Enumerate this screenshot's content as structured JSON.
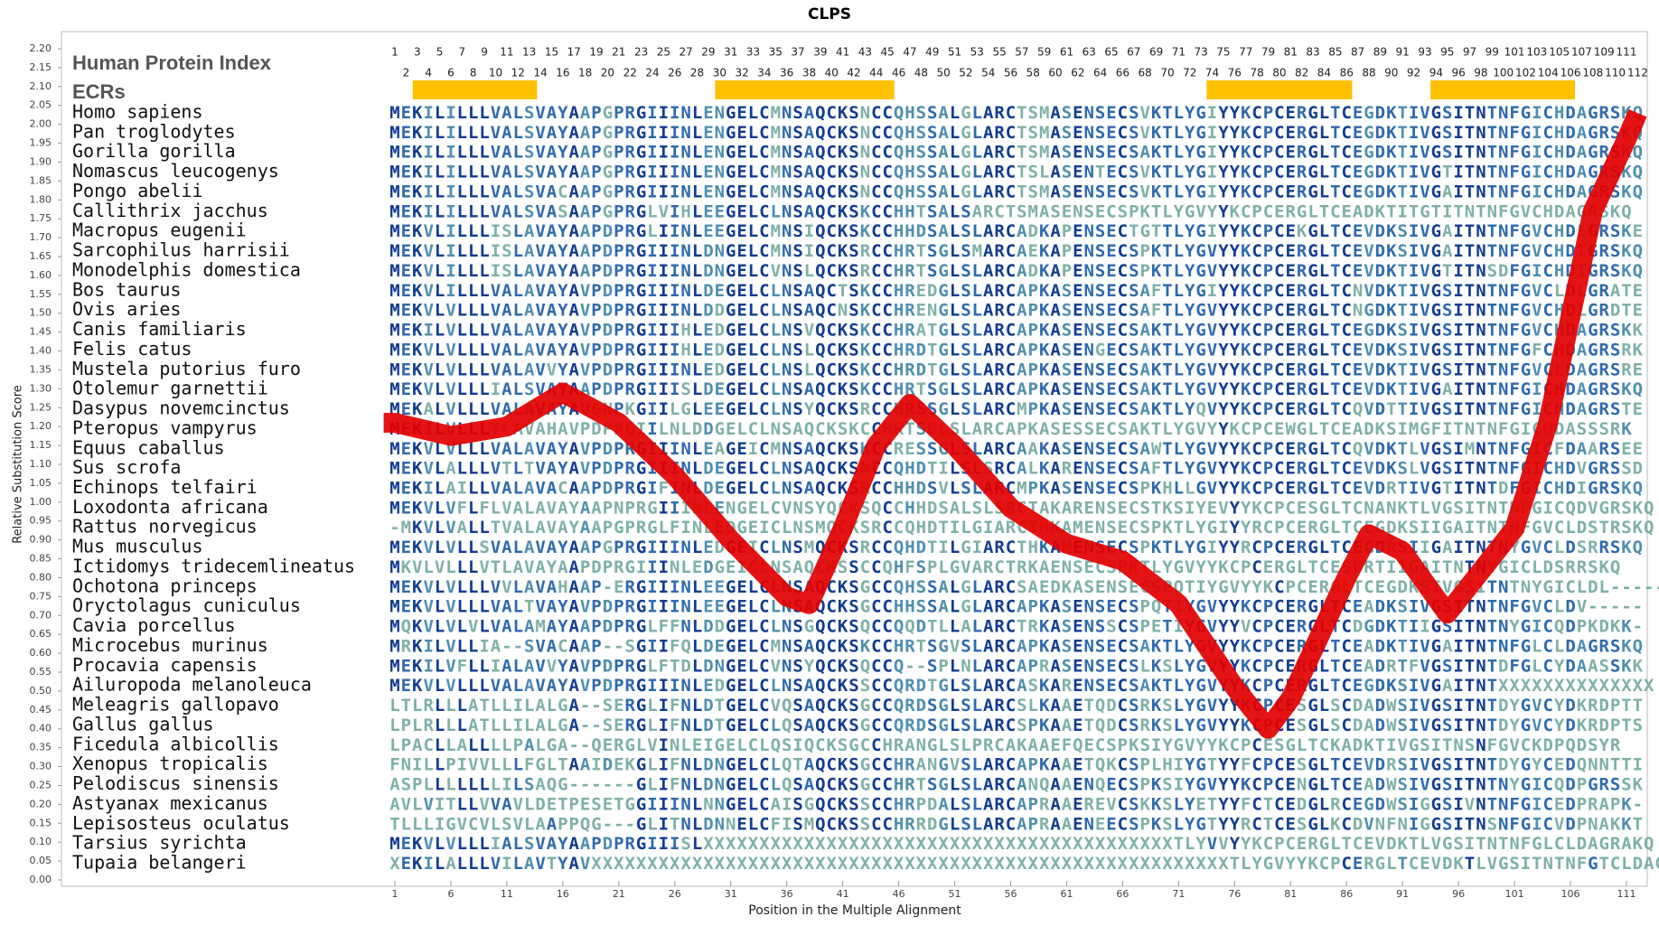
{
  "chart_data": {
    "type": "line",
    "title": "CLPS",
    "y_label": "Relative Substitution Score",
    "x_label": "Position in the Multiple Alignment",
    "color": "#e30000",
    "x": [
      0,
      1,
      6,
      11,
      16,
      21,
      26,
      31,
      36,
      38,
      41,
      44,
      47,
      51,
      56,
      61,
      66,
      71,
      76,
      79,
      81,
      86,
      88,
      91,
      95,
      101,
      104,
      106,
      108,
      111,
      112
    ],
    "values": [
      1.21,
      1.21,
      1.175,
      1.2,
      1.29,
      1.21,
      1.07,
      0.9,
      0.75,
      0.73,
      0.93,
      1.15,
      1.26,
      1.15,
      0.985,
      0.89,
      0.845,
      0.73,
      0.51,
      0.4,
      0.48,
      0.8,
      0.915,
      0.87,
      0.705,
      0.93,
      1.21,
      1.49,
      1.77,
      1.96,
      2.03
    ],
    "xlim": [
      1,
      111
    ],
    "ylim": [
      0,
      2.2
    ],
    "xticks": [
      1,
      6,
      11,
      16,
      21,
      26,
      31,
      36,
      41,
      46,
      51,
      56,
      61,
      66,
      71,
      76,
      81,
      86,
      91,
      96,
      101,
      106,
      111
    ],
    "yticks": [
      {
        "value": 0,
        "label": "0.00"
      },
      {
        "value": 0.05,
        "label": "0.05"
      },
      {
        "value": 0.1,
        "label": "0.10"
      },
      {
        "value": 0.15,
        "label": "0.15"
      },
      {
        "value": 0.2,
        "label": "0.20"
      },
      {
        "value": 0.25,
        "label": "0.25"
      },
      {
        "value": 0.3,
        "label": "0.30"
      },
      {
        "value": 0.35,
        "label": "0.35"
      },
      {
        "value": 0.4,
        "label": "0.40"
      },
      {
        "value": 0.45,
        "label": "0.45"
      },
      {
        "value": 0.5,
        "label": "0.50"
      },
      {
        "value": 0.55,
        "label": "0.55"
      },
      {
        "value": 0.6,
        "label": "0.60"
      },
      {
        "value": 0.65,
        "label": "0.65"
      },
      {
        "value": 0.7,
        "label": "0.70"
      },
      {
        "value": 0.75,
        "label": "0.75"
      },
      {
        "value": 0.8,
        "label": "0.80"
      },
      {
        "value": 0.85,
        "label": "0.85"
      },
      {
        "value": 0.9,
        "label": "0.90"
      },
      {
        "value": 0.95,
        "label": "0.95"
      },
      {
        "value": 1,
        "label": "1.00"
      },
      {
        "value": 1.05,
        "label": "1.05"
      },
      {
        "value": 1.1,
        "label": "1.10"
      },
      {
        "value": 1.15,
        "label": "1.15"
      },
      {
        "value": 1.2,
        "label": "1.20"
      },
      {
        "value": 1.25,
        "label": "1.25"
      },
      {
        "value": 1.3,
        "label": "1.30"
      },
      {
        "value": 1.35,
        "label": "1.35"
      },
      {
        "value": 1.4,
        "label": "1.40"
      },
      {
        "value": 1.45,
        "label": "1.45"
      },
      {
        "value": 1.5,
        "label": "1.50"
      },
      {
        "value": 1.55,
        "label": "1.55"
      },
      {
        "value": 1.6,
        "label": "1.60"
      },
      {
        "value": 1.65,
        "label": "1.65"
      },
      {
        "value": 1.7,
        "label": "1.70"
      },
      {
        "value": 1.75,
        "label": "1.75"
      },
      {
        "value": 1.8,
        "label": "1.80"
      },
      {
        "value": 1.85,
        "label": "1.85"
      },
      {
        "value": 1.9,
        "label": "1.90"
      },
      {
        "value": 1.95,
        "label": "1.95"
      },
      {
        "value": 2,
        "label": "2.00"
      },
      {
        "value": 2.05,
        "label": "2.05"
      },
      {
        "value": 2.1,
        "label": "2.10"
      },
      {
        "value": 2.15,
        "label": "2.15"
      },
      {
        "value": 2.2,
        "label": "2.20"
      }
    ],
    "index_label": "Human Protein Index",
    "index": [
      1,
      2,
      3,
      4,
      5,
      6,
      7,
      8,
      9,
      10,
      11,
      12,
      13,
      14,
      15,
      16,
      17,
      18,
      19,
      20,
      21,
      22,
      23,
      24,
      25,
      26,
      27,
      28,
      29,
      30,
      31,
      32,
      33,
      34,
      35,
      36,
      37,
      38,
      39,
      40,
      41,
      42,
      43,
      44,
      45,
      46,
      47,
      48,
      49,
      50,
      51,
      52,
      53,
      54,
      55,
      56,
      57,
      58,
      59,
      60,
      61,
      62,
      63,
      64,
      65,
      66,
      67,
      68,
      69,
      70,
      71,
      72,
      73,
      74,
      75,
      76,
      77,
      78,
      79,
      80,
      81,
      82,
      83,
      84,
      85,
      86,
      87,
      88,
      89,
      90,
      91,
      92,
      93,
      94,
      95,
      96,
      97,
      98,
      99,
      100,
      101,
      102,
      103,
      104,
      105,
      106,
      107,
      108,
      109,
      110,
      111,
      112
    ],
    "ecr_label": "ECRs",
    "ecr_color": "#ffc000",
    "ecrs": [
      {
        "start": 2.6,
        "end": 13.7
      },
      {
        "start": 29.6,
        "end": 45.6
      },
      {
        "start": 73.5,
        "end": 86.5
      },
      {
        "start": 93.5,
        "end": 106.4
      }
    ],
    "species": [
      {
        "name": "Homo sapiens",
        "sequence": "MEKILILLLVALSVAYAAPGPRGIIINLENGELCMNSAQCKSNCCQHSSALGLARCTSMASENSECSVKTLYGIYYKCPCERGLTCEGDKTIVGSITNTNFGICHDAGRSKQ"
      },
      {
        "name": "Pan troglodytes",
        "sequence": "MEKILILLLVALSVAYAAPGPRGIIINLENGELCMNSAQCKSNCCQHSSALGLARCTSMASENSECSVKTLYGIYYKCPCERGLTCEGDKTIVGSITNTNFGICHDAGRSKQ"
      },
      {
        "name": "Gorilla gorilla",
        "sequence": "MEKILILLLVALSVAYAAPGPRGIIINLENGELCMNSAQCKSNCCQHSSALGLARCTSMASENSECSAKTLYGIYYKCPCERGLTCEGDKTIVGSITNTNFGICHDAGRSKQ"
      },
      {
        "name": "Nomascus leucogenys",
        "sequence": "MEKILILLLVALSVAYAAPGPRGIIINLENGELCMNSAQCKSNCCQHSSALGLARCTSLASENTECSVKTLYGIYYKCPCERGLTCEGDKTIVGTITNTNFGICHDAGRSKQ"
      },
      {
        "name": "Pongo abelii",
        "sequence": "MEKILILLLVALSVACAAPGPRGIIINLENGELCMNSAQCKSNCCQHSSALGLARCTSMASENSECSVKTLYGIYYKCPCERGLTCEGDKTIVGAITNTNFGICHDAGRSKQ"
      },
      {
        "name": "Callithrix jacchus",
        "sequence": "MEKILILLLVALSVASAAPGPRGLVIHLEEGELCLNSAQCKSKCCHHTSALSARCTSMASENSECSPKTLYGVYYKCPCERGLTCEADKTITGTITNTNFGVCHDAGRSKQ"
      },
      {
        "name": "Macropus eugenii",
        "sequence": "MEKVLILLLISLAVAYAAPDPRGLIINLEEGELCMNSIQCKSKCCHHDSALSLARCADKAPENSECTGTTLYGIYYKCPCEKGLTCEVDKSIVGAITNTNFGVCHDLGRSKE"
      },
      {
        "name": "Sarcophilus harrisii",
        "sequence": "MEKVLILLLISLAVAYAAPDPRGIIINLDNGELCMNSIQCKSRCCHRTSGLSMARCAEKAPENSECSPKTLYGVYYKCPCERGLTCEVDKSIVGAITNTNFGVCHDIGRSKQ"
      },
      {
        "name": "Monodelphis domestica",
        "sequence": "MEKVLILLLISLAVAYAAPDPRGIIINLDNGELCVNSLQCKSRCCHRTSGLSLARCADKAPENSECSPKTLYGVYYKCPCERGLTCEVDKTIVGTITNSDFGICHDIGRSKQ"
      },
      {
        "name": "Bos taurus",
        "sequence": "MEKVLILLLVALAVAYAVPDPRGIIINLDEGELCLNSAQCTSKCCHREDGLSLARCAPKASENSECSAFTLYGIYYKCPCERGLTCNVDKTIVGSITNTNFGVCLDLGRATE"
      },
      {
        "name": "Ovis aries",
        "sequence": "MEKVLVLLLVALAVAYAVPDPRGIIINLDDGELCLNSAQCNSKCCHRENGLSLARCAPKASENSECSAFTLYGVYYKCPCERGLTCNGDKTIVGSITNTNFGVCHDLGRDTE"
      },
      {
        "name": "Canis familiaris",
        "sequence": "MEKILVLLLVALAVAYAVPDPRGIIIHLEDGELCLNSVQCKSKCCHRATGLSLARCAPKASENSECSAKTLYGVYYKCPCERGLTCEGDKSIVGSITNTNFGVCHDAGRSKK"
      },
      {
        "name": "Felis catus",
        "sequence": "MEKVLVLLLVALAVAYAVPDPRGIIIHLEDGELCLNSLQCKSKCCHRDTGLSLARCAPKASENGECSAKTLYGVYYKCPCERGLTCEVDKSIVGSITNTNFGFCHDAGRSRK"
      },
      {
        "name": "Mustela putorius furo",
        "sequence": "MEKVLVLLLVALAVVYAVPDPRGIIINLEDGELCLNSLQCKSKCCHRDTGLSLARCAPKASENSECSAKTLYGVYYKCPCERGLTCEVDKTIVGSITNTNFGVCLDAGRSRE"
      },
      {
        "name": "Otolemur garnettii",
        "sequence": "MEKVLVLLLIALSVAYAAPDPRGIIISLDEGELCLNSAQCKSKCCHRTSGLSLARCAPKASENSECSAKTLYGVYYKCPCERGLTCEVDKTIVGAITNTNFGICHDAGRSKQ"
      },
      {
        "name": "Dasypus novemcinctus",
        "sequence": "MEKALVLLLVALAVAYAVGNPKGIILGLEEGELCLNSYQCKSRCCHRSSGLSLARCMPKASENSECSAKTLYQVYYKCPCERGLTCQVDTTIVGSITNTNFGICHDAGRSTE"
      },
      {
        "name": "Pteropus vampyrus",
        "sequence": "MEKILVLLLTLAVAHAVPDPRGIILNLDDGELCLNSAQCKSKCCHRTSGLSLARCAPKASESSECSAKTLYGVYYKCPCEWGLTCEADKSIMGFITNTNFGICQDASSSRK"
      },
      {
        "name": "Equus caballus",
        "sequence": "MEKVLVLLLVALAVAYAVPDPRGIIINLEAGEICMNSAQCKSKCCRESSGLSLARCAAKASENSECSAWTLYGVYYKCPCERGLTCQVDKTLVGSIMNTNFGICFDAARSEE"
      },
      {
        "name": "Sus scrofa",
        "sequence": "MEKVLALLLVTLTVAYAVPDPRGIIINLDEGELCLNSAQCKSNCCQHDTILSLSRCALKARENSECSAFTLYGVYYKCPCERGLTCEVDKSLVGSITNTNFGICHDVGRSSD"
      },
      {
        "name": "Echinops telfairi",
        "sequence": "MEKILAILLVALAVACAAPDPRGIFINLDEGELCLNSAQCKSRCCHHDSVLSLARCMPKASENSECSPKHLLGVYYKCPCERGLTCEVDRTIVGTITNTDFGICHDIGRSKQ"
      },
      {
        "name": "Loxodonta africana",
        "sequence": "MEKVLVFLFLVALAVAYAAPNPRGIIINLENGELCVNSYQCKSQCCHHDSALSLSRCTAKARENSECSTKSIYEVYYKCPCESGLTCNANKTLVGSITNTNFGICQDVGRSKQ"
      },
      {
        "name": "Rattus norvegicus",
        "sequence": "-MKVLVALLTVALAVAYAAPGPRGLFINLEDGEICLNSMQCKSRCCQHDTILGIARCTHKAMENSECSPKTLYGIYYRCPCERGLTCEGDKSIIGAITNTNFGVCLDSTRSKQ"
      },
      {
        "name": "Mus musculus",
        "sequence": "MEKVLVLLSVALAVAYAAPGPRGIIINLEDGEICLNSMQCKSRCCQHDTILGIARCTHKAMENSECSPKTLYGIYYRCPCERGLTCEGDRSIIGAITNTNYGVCLDSRRSKQ"
      },
      {
        "name": "Ictidomys tridecemlineatus",
        "sequence": "MKVLVLLLVTLAVAYAAPDPRGIIINLEDGEICLNSAQCKSSCCQHFSPLGVARCTRKAENSECSPKTLYGVYYKCPCERGLTCESDRTIIGAITNTNYGICLDSRRSKQ"
      },
      {
        "name": "Ochotona princeps",
        "sequence": "MEKVLVLLLVVLAVAHAAP-ERGIIINLEEGELCLNSAQCKSGCCQHSSALGLARCSAEDKASENSECSPQTIYGVYYKCPCERGLTCEGDKSIVGSITNTNYGICLDL-----"
      },
      {
        "name": "Oryctolagus cuniculus",
        "sequence": "MEKVLVLLLVALTVAYAVPDPRGIIINLEEGELCLNSAQCKSGCCHHSSALGLARCAPKASENSECSPQTIYGVYYKCPCERGLTCEADKSIVGSITNTNFGVCLDV-----"
      },
      {
        "name": "Cavia porcellus",
        "sequence": "MQKVLVLVLVALAMAYAAPDPRGLFFNLDDGELCLNSGQCKSQCCQQDTLLALARCTRKASENSSCSPETIYGVYYVCPCERGLTCDGDKTIIGSITNTNYGICQDPKDKK-"
      },
      {
        "name": "Microcebus murinus",
        "sequence": "MRKILVLLIA--SVACAAP--SGIIFQLDEGELCMNSAQCKSKCCHRTSGVSLARCAPKASENSECSAKTLYGVYYKCPCERGLTCEADKTIVGAITNTNFGLCLDAGRSKQ"
      },
      {
        "name": "Procavia capensis",
        "sequence": "MEKILVFLLIALAVVYAVPDPRGLFTDLDNGELCVNSYQCKSQCCQ--SPLNLARCAPRASENSECSLKSLYGVYYKCPCERGLTCEADRTFVGSITNTDFGLCYDAASSKK"
      },
      {
        "name": "Ailuropoda melanoleuca",
        "sequence": "MEKVLVLLLVALAVAYAVPDPRGIIINLEDGELCLNSAQCKSSCCQRDTGLSLARCASKARENSECSAKTLYGVYYKCPCERGLTCEGDKSIVGAITNTXXXXXXXXXXXXXX"
      },
      {
        "name": "Meleagris gallopavo",
        "sequence": "LTLRLLLATLLILALGA--SERGLIFNLDTGELCVQSAQCKSGCCQRDSGLSLARCSLKAAETQDCSRKSLYGVYYKCPCESGLSCDADWSIVGSITNTDYGVCYDKRDPTT"
      },
      {
        "name": "Gallus gallus",
        "sequence": "LPLRLLLATLLILALGA--SERGLIFNLDTGELCLQSAQCKSGCCQRDSGLSLARCSPKAAETQDCSRKSLYGVYYKCPCESGLSCDADWSIVGSITNTDYGVCYDKRDPTS"
      },
      {
        "name": "Ficedula albicollis",
        "sequence": "LPACLLALLLLPALGA--QERGLVINLEIGELCLQSIQCKSGCCHRANGLSLPRCAKAAEFQECSPKSIYGVYYKCPCESGLTCKADKTIVGSITNSNFGVCKDPQDSYR"
      },
      {
        "name": "Xenopus tropicalis",
        "sequence": "FNILLPIVVLLLFGLTAAIDEKGLIFNLDNGELCLQTAQCKSGCCHRANGVSLARCAPKAAETQKCSPLHIYGTYYFCPCESGLTCEVDRSIVGSITNTDYGYCEDQNNTTI"
      },
      {
        "name": "Pelodiscus sinensis",
        "sequence": "ASPLLLLLLLILSAQG------GLIFNLDNGELCLQSAQCKSGCCHRTSGLSLARCANQAAENQECSPKSIYGVYYKCPCENGLTCEADWSIVGSITNTNYGICQDPGRSSK"
      },
      {
        "name": "Astyanax mexicanus",
        "sequence": "AVLVITLLVVAVLDETPESETGGIIINLNNGELCAISGQCKSSCCHRPDALSLARCAPRAAEREVCSKKSLYETYYFCTCEDGLRCEGDWSIGGSIVNTNFGICEDPRAPK-"
      },
      {
        "name": "Lepisosteus oculatus",
        "sequence": "TLLLIGVCVLSVLAAPPQG---GLITNLDNNELCFISMQCKSSCCHRRDGLSLARCAPRAAENEECSPKSLYGTYYRCTCESGLKCDVNFNIGGSITNSNFGICVDPNAKKT"
      },
      {
        "name": "Tarsius syrichta",
        "sequence": "MEKVLVLLLIALSVAYAAPDPRGIIISLXXXXXXXXXXXXXXXXXXXXXXXXXXXXXXXXXXXXXXXXXXTLYVVYYKCPCERGLTCEVDKTLVGSITNTNFGLCLDAGRAKQ"
      },
      {
        "name": "Tupaia belangeri",
        "sequence": "XEKILALLLVILAVTYAVXXXXXXXXXXXXXXXXXXXXXXXXXXXXXXXXXXXXXXXXXXXXXXXXXXXXXXXXXTLYGVYYKCPCERGLTCEVDKTLVGSITNTNFGTCLDAGRSSS"
      }
    ]
  }
}
